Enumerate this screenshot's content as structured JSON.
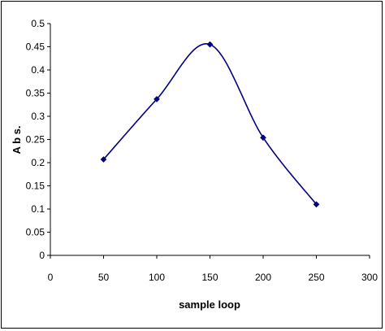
{
  "chart_data": {
    "type": "line",
    "smooth": true,
    "title": "",
    "xlabel": "sample loop",
    "ylabel": "A b s.",
    "xlim": [
      0,
      300
    ],
    "ylim": [
      0,
      0.5
    ],
    "x_ticks": [
      0,
      50,
      100,
      150,
      200,
      250,
      300
    ],
    "y_ticks": [
      0,
      0.05,
      0.1,
      0.15,
      0.2,
      0.25,
      0.3,
      0.35,
      0.4,
      0.45,
      0.5
    ],
    "x_tick_labels": [
      "0",
      "50",
      "100",
      "150",
      "200",
      "250",
      "300"
    ],
    "y_tick_labels": [
      "0",
      "0.05",
      "0.1",
      "0.15",
      "0.2",
      "0.25",
      "0.3",
      "0.35",
      "0.4",
      "0.45",
      "0.5"
    ],
    "grid": false,
    "legend": "none",
    "line_color": "#000080",
    "marker": "diamond",
    "series": [
      {
        "x": [
          50,
          100,
          150,
          200,
          250
        ],
        "values": [
          0.207,
          0.337,
          0.455,
          0.254,
          0.11
        ]
      }
    ]
  }
}
